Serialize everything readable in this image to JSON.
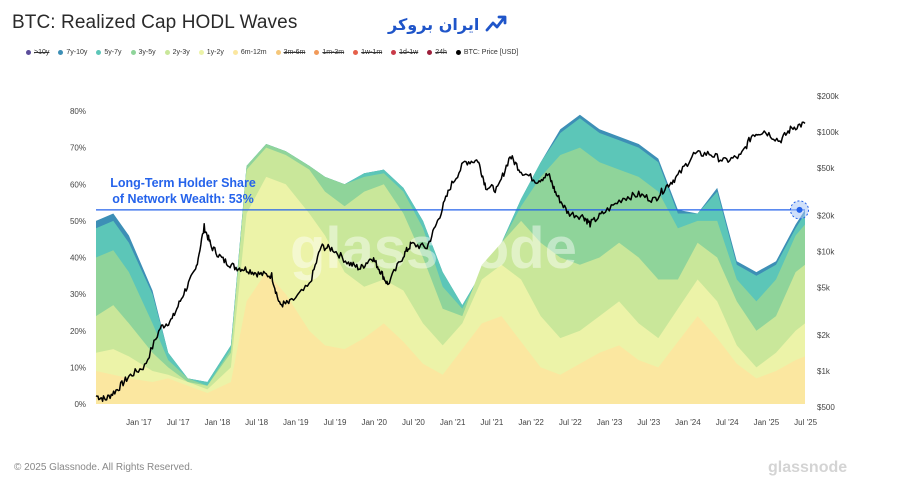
{
  "title": "BTC: Realized Cap HODL Waves",
  "brand": {
    "text": "ایران بروکر",
    "icon": "trend-up-logo-icon",
    "color": "#1f55c9"
  },
  "legend": [
    {
      "label": ">10y",
      "color": "#5b4d9a",
      "struck": true
    },
    {
      "label": "7y-10y",
      "color": "#3d8fb6",
      "struck": false
    },
    {
      "label": "5y-7y",
      "color": "#5cc6b8",
      "struck": false
    },
    {
      "label": "3y-5y",
      "color": "#8fd49a",
      "struck": false
    },
    {
      "label": "2y-3y",
      "color": "#c9e79a",
      "struck": false
    },
    {
      "label": "1y-2y",
      "color": "#ecf3a8",
      "struck": false
    },
    {
      "label": "6m-12m",
      "color": "#fbe7a0",
      "struck": false
    },
    {
      "label": "3m-6m",
      "color": "#f5c77a",
      "struck": true
    },
    {
      "label": "1m-3m",
      "color": "#f19a5a",
      "struck": true
    },
    {
      "label": "1w-1m",
      "color": "#e5604a",
      "struck": true
    },
    {
      "label": "1d-1w",
      "color": "#c93a48",
      "struck": true
    },
    {
      "label": "24h",
      "color": "#9c1f3a",
      "struck": true
    },
    {
      "label": "BTC: Price [USD]",
      "color": "#000000",
      "struck": false
    }
  ],
  "chart_data": {
    "type": "area",
    "title": "BTC: Realized Cap HODL Waves",
    "x_tick_labels": [
      "Jan '17",
      "Jul '17",
      "Jan '18",
      "Jul '18",
      "Jan '19",
      "Jul '19",
      "Jan '20",
      "Jul '20",
      "Jan '21",
      "Jul '21",
      "Jan '22",
      "Jul '22",
      "Jan '23",
      "Jul '23",
      "Jan '24",
      "Jul '24",
      "Jan '25",
      "Jul '25"
    ],
    "x_tick_values": [
      2017.0,
      2017.5,
      2018.0,
      2018.5,
      2019.0,
      2019.5,
      2020.0,
      2020.5,
      2021.0,
      2021.5,
      2022.0,
      2022.5,
      2023.0,
      2023.5,
      2024.0,
      2024.5,
      2025.0,
      2025.5
    ],
    "x_range": [
      2016.58,
      2025.62
    ],
    "left_axis": {
      "ticks": [
        0,
        10,
        20,
        30,
        40,
        50,
        60,
        70,
        80
      ],
      "labels": [
        "0%",
        "10%",
        "20%",
        "30%",
        "40%",
        "50%",
        "60%",
        "70%",
        "80%"
      ],
      "range": [
        0,
        80
      ]
    },
    "right_axis": {
      "scale": "log",
      "ticks": [
        500,
        1000,
        2000,
        5000,
        10000,
        20000,
        50000,
        100000,
        200000
      ],
      "labels": [
        "$500",
        "$1k",
        "$2k",
        "$5k",
        "$10k",
        "$20k",
        "$50k",
        "$100k",
        "$200k"
      ],
      "range": [
        500,
        200000
      ]
    },
    "grid": false,
    "legend_position": "top-left",
    "bands": [
      {
        "name": "6m-12m",
        "color": "#fbe7a0",
        "x": [
          2016.58,
          2016.8,
          2017.0,
          2017.3,
          2017.5,
          2017.75,
          2018.0,
          2018.3,
          2018.5,
          2018.75,
          2019.0,
          2019.3,
          2019.5,
          2019.75,
          2020.0,
          2020.25,
          2020.5,
          2020.75,
          2021.0,
          2021.25,
          2021.5,
          2021.75,
          2022.0,
          2022.25,
          2022.5,
          2022.75,
          2023.0,
          2023.25,
          2023.5,
          2023.75,
          2024.0,
          2024.25,
          2024.5,
          2024.75,
          2025.0,
          2025.25,
          2025.5,
          2025.62
        ],
        "top": [
          9,
          8,
          7,
          6,
          7,
          5,
          3,
          6,
          28,
          36,
          30,
          20,
          16,
          15,
          18,
          22,
          17,
          11,
          8,
          15,
          22,
          24,
          17,
          10,
          8,
          11,
          14,
          16,
          12,
          10,
          17,
          24,
          18,
          11,
          7,
          9,
          12,
          13
        ]
      },
      {
        "name": "1y-2y",
        "color": "#ecf3a8",
        "top": [
          14,
          15,
          13,
          9,
          8,
          6,
          4,
          10,
          52,
          62,
          60,
          52,
          46,
          36,
          32,
          34,
          31,
          22,
          16,
          22,
          34,
          38,
          34,
          24,
          18,
          20,
          24,
          28,
          22,
          18,
          26,
          34,
          28,
          16,
          10,
          14,
          20,
          22
        ]
      },
      {
        "name": "2y-3y",
        "color": "#c9e79a",
        "top": [
          24,
          27,
          22,
          14,
          10,
          6,
          5,
          14,
          64,
          70,
          68,
          64,
          58,
          54,
          58,
          60,
          52,
          40,
          26,
          24,
          38,
          44,
          50,
          44,
          40,
          38,
          40,
          44,
          40,
          34,
          34,
          44,
          40,
          28,
          20,
          24,
          36,
          38
        ]
      },
      {
        "name": "3y-5y",
        "color": "#8fd49a",
        "top": [
          40,
          42,
          36,
          22,
          12,
          7,
          5,
          15,
          65,
          71,
          69,
          65,
          62,
          60,
          62,
          63,
          58,
          48,
          32,
          26,
          36,
          44,
          54,
          62,
          68,
          70,
          66,
          64,
          62,
          58,
          48,
          50,
          50,
          34,
          28,
          34,
          46,
          49
        ]
      },
      {
        "name": "5y-7y",
        "color": "#5cc6b8",
        "top": [
          48,
          50,
          44,
          30,
          14,
          7,
          6,
          16,
          65,
          71,
          69,
          65,
          62,
          60,
          63,
          64,
          59,
          50,
          36,
          27,
          36,
          44,
          56,
          66,
          74,
          78,
          74,
          72,
          70,
          66,
          52,
          52,
          58,
          38,
          35,
          38,
          48,
          52
        ]
      },
      {
        "name": "7y-10y",
        "color": "#3d8fb6",
        "top": [
          50,
          52,
          46,
          31,
          14,
          7,
          6,
          16,
          65,
          71,
          69,
          65,
          62,
          60,
          63,
          64,
          59,
          50,
          36,
          27,
          36,
          44,
          56,
          66,
          75,
          79,
          75,
          73,
          71,
          67,
          53,
          52,
          59,
          39,
          36,
          39,
          49,
          53
        ]
      }
    ],
    "price": {
      "name": "BTC: Price [USD]",
      "color": "#000000",
      "x": [
        2016.58,
        2016.7,
        2016.85,
        2017.0,
        2017.2,
        2017.4,
        2017.55,
        2017.7,
        2017.85,
        2017.96,
        2018.05,
        2018.2,
        2018.35,
        2018.5,
        2018.65,
        2018.82,
        2018.92,
        2019.05,
        2019.3,
        2019.45,
        2019.6,
        2019.8,
        2019.95,
        2020.1,
        2020.2,
        2020.3,
        2020.5,
        2020.6,
        2020.8,
        2020.95,
        2021.1,
        2021.28,
        2021.45,
        2021.55,
        2021.7,
        2021.86,
        2022.0,
        2022.2,
        2022.35,
        2022.45,
        2022.6,
        2022.8,
        2022.88,
        2023.05,
        2023.3,
        2023.5,
        2023.7,
        2023.85,
        2024.0,
        2024.2,
        2024.4,
        2024.6,
        2024.8,
        2024.95,
        2025.1,
        2025.3,
        2025.45,
        2025.62
      ],
      "y": [
        620,
        580,
        700,
        900,
        1100,
        2300,
        2700,
        4500,
        7000,
        16000,
        11000,
        8500,
        7400,
        7100,
        6500,
        6300,
        3600,
        3700,
        5200,
        11000,
        10500,
        8000,
        7200,
        9000,
        7000,
        5300,
        9300,
        11500,
        10800,
        19000,
        35000,
        56000,
        58000,
        35000,
        33000,
        63000,
        47000,
        39000,
        44000,
        30000,
        21000,
        19500,
        17000,
        21000,
        28000,
        30000,
        27000,
        35000,
        43000,
        65000,
        66000,
        57000,
        63000,
        95000,
        102000,
        84000,
        108000,
        118000
      ]
    },
    "annotations": [
      {
        "text": "Long-Term Holder Share of Network Wealth: 53%",
        "lines": [
          "Long-Term Holder Share",
          "of Network Wealth: 53%"
        ],
        "value": 53,
        "color": "#2563eb"
      }
    ],
    "watermark": "glassnode"
  },
  "footer": {
    "copyright": "© 2025 Glassnode. All Rights Reserved.",
    "logo": "glassnode"
  }
}
